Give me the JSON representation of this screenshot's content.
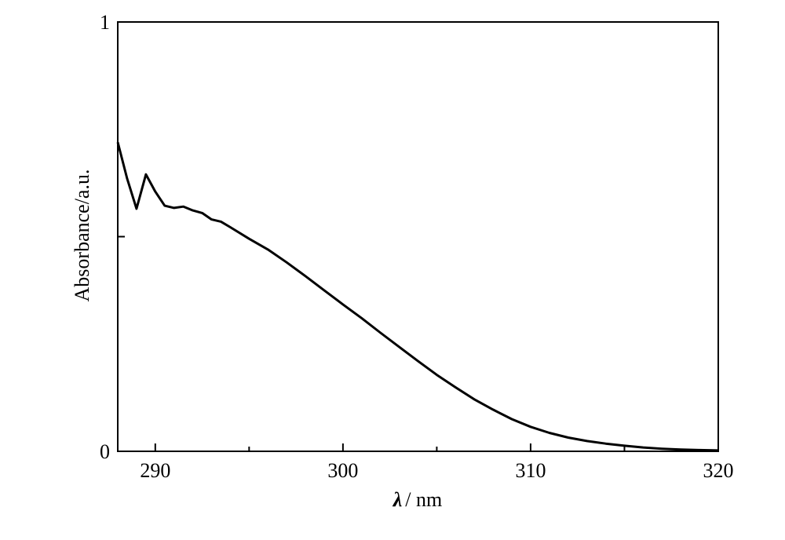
{
  "chart_data": {
    "type": "line",
    "title": "",
    "xlabel_symbol": "λ",
    "xlabel_unit": "/ nm",
    "ylabel": "Absorbance/a.u.",
    "xlim": [
      288,
      320
    ],
    "ylim": [
      0,
      1
    ],
    "x_ticks": [
      290,
      300,
      310,
      320
    ],
    "x_tick_labels": [
      "290",
      "300",
      "310",
      "320"
    ],
    "x_minor_ticks": [
      295,
      305,
      315
    ],
    "y_ticks": [
      0,
      0.5,
      1
    ],
    "y_tick_labels": [
      "0",
      "",
      "1"
    ],
    "grid": false,
    "series": [
      {
        "x": [
          288.0,
          288.5,
          289.0,
          289.5,
          290.0,
          290.5,
          291.0,
          291.5,
          292.0,
          292.5,
          293.0,
          293.5,
          294.0,
          295.0,
          296.0,
          297.0,
          298.0,
          299.0,
          300.0,
          301.0,
          302.0,
          303.0,
          304.0,
          305.0,
          306.0,
          307.0,
          308.0,
          309.0,
          310.0,
          311.0,
          312.0,
          313.0,
          314.0,
          315.0,
          316.0,
          317.0,
          318.0,
          319.0,
          320.0
        ],
        "y": [
          0.72,
          0.635,
          0.565,
          0.645,
          0.605,
          0.572,
          0.567,
          0.57,
          0.561,
          0.555,
          0.54,
          0.535,
          0.522,
          0.495,
          0.47,
          0.44,
          0.408,
          0.375,
          0.342,
          0.31,
          0.276,
          0.243,
          0.21,
          0.178,
          0.149,
          0.121,
          0.097,
          0.075,
          0.057,
          0.043,
          0.032,
          0.024,
          0.018,
          0.013,
          0.009,
          0.006,
          0.004,
          0.003,
          0.002
        ]
      }
    ]
  }
}
